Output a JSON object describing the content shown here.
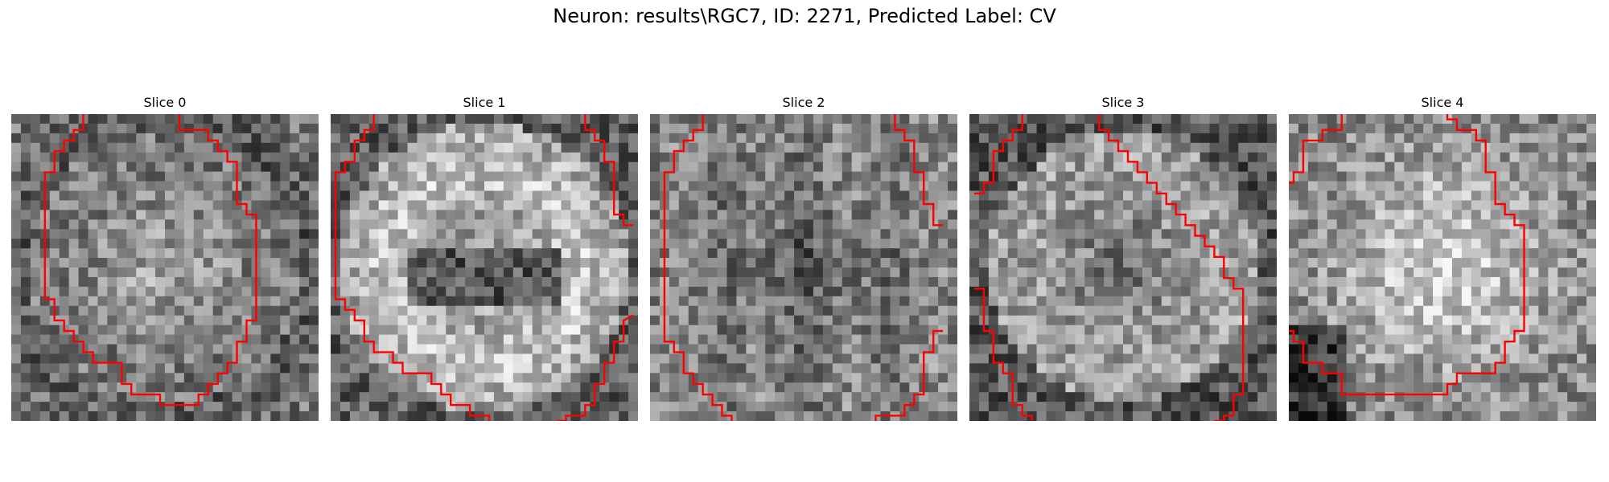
{
  "figure": {
    "title": "Neuron: results\\RGC7, ID: 2271, Predicted Label: CV"
  },
  "panels": [
    {
      "title": "Slice 0",
      "tone": "speckled-medium",
      "seed": 11
    },
    {
      "title": "Slice 1",
      "tone": "ring-with-dark-band",
      "seed": 23
    },
    {
      "title": "Slice 2",
      "tone": "speckled-dark",
      "seed": 37
    },
    {
      "title": "Slice 3",
      "tone": "ring-dark-center",
      "seed": 51
    },
    {
      "title": "Slice 4",
      "tone": "bright-blob",
      "seed": 67
    }
  ],
  "colors": {
    "contour": "#ff0000",
    "background": "#ffffff"
  }
}
